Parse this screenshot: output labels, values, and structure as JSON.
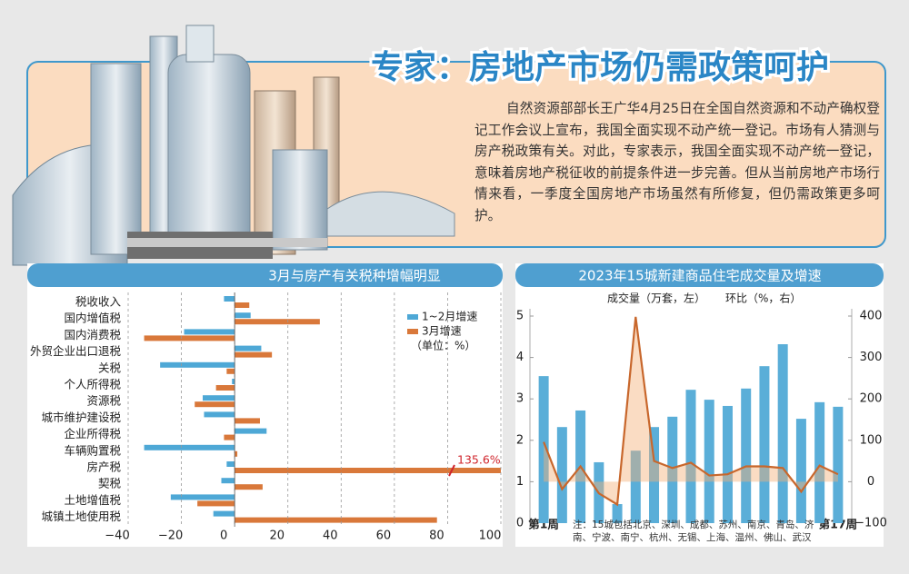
{
  "header": {
    "title": "专家：房地产市场仍需政策呵护",
    "body": "自然资源部部长王广华4月25日在全国自然资源和不动产确权登记工作会议上宣布，我国全面实现不动产统一登记。市场有人猜测与房产税政策有关。对此，专家表示，我国全面实现不动产统一登记，意味着房地产税征收的前提条件进一步完善。但从当前房地产市场行情来看，一季度全国房地产市场虽然有所修复，但仍需政策更多呵护。"
  },
  "chart_data": [
    {
      "type": "bar",
      "orientation": "horizontal",
      "title": "3月与房产有关税种增幅明显",
      "categories": [
        "税收收入",
        "国内增值税",
        "国内消费税",
        "外贸企业出口退税",
        "关税",
        "个人所得税",
        "资源税",
        "城市维护建设税",
        "企业所得税",
        "车辆购置税",
        "房产税",
        "契税",
        "土地增值税",
        "城镇土地使用税"
      ],
      "series": [
        {
          "name": "1~2月增速",
          "color": "#4ea8d6",
          "values": [
            -4,
            6,
            -19,
            10,
            -28,
            -1,
            -12,
            -11.5,
            12,
            -34,
            -3,
            -5,
            -24,
            -8
          ]
        },
        {
          "name": "3月增速",
          "color": "#d9783a",
          "values": [
            5.5,
            32,
            -34,
            14,
            -3,
            -7,
            -15,
            9.5,
            -4,
            1,
            135.6,
            10.5,
            -14,
            76
          ],
          "value_labels": [
            null,
            null,
            null,
            null,
            null,
            null,
            null,
            null,
            null,
            null,
            "135.6%",
            null,
            null,
            null
          ]
        }
      ],
      "unit_note": "（单位：%）",
      "xlim": [
        -40,
        100
      ],
      "xticks": [
        {
          "value": -40,
          "label": "−40"
        },
        {
          "value": -20,
          "label": "−20"
        },
        0,
        20,
        40,
        60,
        80,
        100
      ],
      "grid": true
    },
    {
      "type": "combo",
      "title": "2023年15城新建商品住宅成交量及增速",
      "categories": [
        "第1周",
        null,
        null,
        null,
        null,
        null,
        null,
        null,
        null,
        null,
        null,
        null,
        null,
        null,
        null,
        null,
        "第17周"
      ],
      "series": [
        {
          "name": "成交量（万套，左）",
          "type": "bar",
          "color": "#5aaed8",
          "values": [
            3.55,
            2.32,
            2.72,
            1.47,
            0.46,
            1.75,
            2.32,
            2.57,
            3.22,
            2.98,
            2.83,
            3.25,
            3.79,
            4.32,
            2.52,
            2.92,
            2.81
          ]
        },
        {
          "name": "环比（%，右）",
          "type": "line",
          "axis": "y2",
          "color": "#c8672c",
          "values": [
            96,
            -18,
            37,
            -28,
            -55,
            398,
            50,
            33,
            46,
            15,
            18,
            37,
            37,
            33,
            -24,
            39,
            18
          ]
        }
      ],
      "ylim": [
        0,
        5
      ],
      "yticks": [
        0,
        1,
        2,
        3,
        4,
        5
      ],
      "y2lim": [
        -100,
        400
      ],
      "y2ticks": [
        {
          "value": -100,
          "label": "−100"
        },
        0,
        100,
        200,
        300,
        400
      ],
      "note": "注：15城包括北京、深圳、成都、苏州、南京、青岛、济南、宁波、南宁、杭州、无锡、上海、温州、佛山、武汉"
    }
  ]
}
